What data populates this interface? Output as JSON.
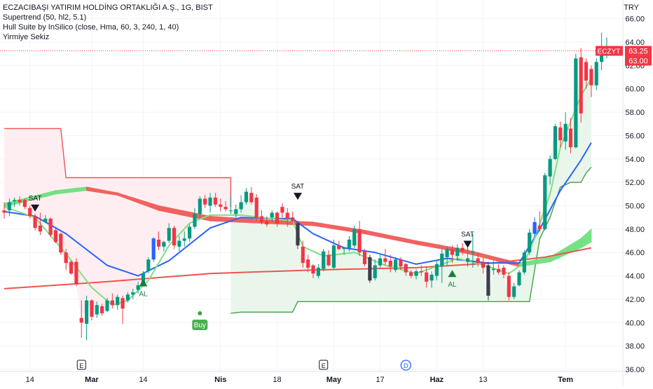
{
  "header": {
    "symbol_title": "ECZACIBAŞI YATIRIM HOLDİNG ORTAKLIĞI A.Ş., 1G, BIST",
    "indicators": [
      "Supertrend (50, hl2, 5.1)",
      "Hull Suite by InSilico (close, Hma, 60, 3, 240, 1, 40)",
      "Yirmiye Sekiz"
    ]
  },
  "colors": {
    "up": "#089981",
    "down": "#f23645",
    "blue_candle": "#2962ff",
    "dark_candle": "#3a3f4b",
    "supertrend_up": "#43a047",
    "supertrend_down": "#ef5350",
    "fill_up": "#e8f5e9",
    "fill_down": "#ffebee",
    "hull_green": "#66e07a",
    "hull_red": "#ef5350",
    "ma_blue": "#2962ff",
    "ma_light_green": "#7ee081",
    "grid": "#f0f3fa",
    "axis_text": "#131722",
    "last_price_bg": "#f23645"
  },
  "chart_data": {
    "type": "candlestick",
    "currency": "TRY",
    "ylim": [
      36,
      67
    ],
    "y_ticks": [
      "36.00",
      "38.00",
      "40.00",
      "42.00",
      "44.00",
      "46.00",
      "48.00",
      "50.00",
      "52.00",
      "54.00",
      "56.00",
      "58.00",
      "60.00",
      "62.00",
      "64.00",
      "66.00"
    ],
    "x_ticks": [
      {
        "label": "14",
        "bar": 5
      },
      {
        "label": "Mar",
        "bar": 17
      },
      {
        "label": "14",
        "bar": 27
      },
      {
        "label": "Nis",
        "bar": 42
      },
      {
        "label": "18",
        "bar": 53
      },
      {
        "label": "May",
        "bar": 64
      },
      {
        "label": "17",
        "bar": 73
      },
      {
        "label": "Haz",
        "bar": 84
      },
      {
        "label": "13",
        "bar": 93
      },
      {
        "label": "Tem",
        "bar": 109
      }
    ],
    "candles": [
      {
        "o": 49.6,
        "h": 50.3,
        "l": 48.9,
        "c": 49.4
      },
      {
        "o": 49.6,
        "h": 50.6,
        "l": 49.1,
        "c": 50.3
      },
      {
        "o": 50.4,
        "h": 50.7,
        "l": 49.9,
        "c": 50.5
      },
      {
        "o": 50.5,
        "h": 50.8,
        "l": 50.0,
        "c": 50.3
      },
      {
        "o": 50.5,
        "h": 50.6,
        "l": 49.7,
        "c": 49.9
      },
      {
        "o": 49.8,
        "h": 50.0,
        "l": 48.9,
        "c": 49.1
      },
      {
        "o": 49.1,
        "h": 49.3,
        "l": 47.9,
        "c": 48.1
      },
      {
        "o": 48.3,
        "h": 49.4,
        "l": 47.5,
        "c": 47.8
      },
      {
        "o": 48.6,
        "h": 49.2,
        "l": 48.5,
        "c": 48.9
      },
      {
        "o": 48.9,
        "h": 49.0,
        "l": 47.3,
        "c": 47.5
      },
      {
        "o": 47.9,
        "h": 48.1,
        "l": 46.8,
        "c": 46.9
      },
      {
        "o": 47.6,
        "h": 47.7,
        "l": 45.8,
        "c": 46.0
      },
      {
        "o": 46.0,
        "h": 46.3,
        "l": 44.5,
        "c": 45.1
      },
      {
        "o": 45.2,
        "h": 45.3,
        "l": 44.1,
        "c": 44.2
      },
      {
        "o": 45.2,
        "h": 45.5,
        "l": 43.1,
        "c": 43.3
      },
      {
        "o": 40.4,
        "h": 41.9,
        "l": 38.7,
        "c": 40.0
      },
      {
        "o": 39.9,
        "h": 42.3,
        "l": 38.5,
        "c": 41.9
      },
      {
        "o": 41.9,
        "h": 42.0,
        "l": 40.2,
        "c": 40.5
      },
      {
        "o": 40.7,
        "h": 41.8,
        "l": 40.4,
        "c": 41.5
      },
      {
        "o": 41.4,
        "h": 41.6,
        "l": 40.6,
        "c": 40.8
      },
      {
        "o": 41.0,
        "h": 42.1,
        "l": 40.9,
        "c": 41.9
      },
      {
        "o": 41.9,
        "h": 42.5,
        "l": 41.2,
        "c": 41.5
      },
      {
        "o": 41.5,
        "h": 42.4,
        "l": 41.1,
        "c": 42.2
      },
      {
        "o": 42.1,
        "h": 42.3,
        "l": 39.9,
        "c": 41.2
      },
      {
        "o": 41.9,
        "h": 42.6,
        "l": 41.7,
        "c": 42.4
      },
      {
        "o": 42.4,
        "h": 42.9,
        "l": 42.0,
        "c": 42.6
      },
      {
        "o": 42.8,
        "h": 43.5,
        "l": 42.5,
        "c": 43.2
      },
      {
        "o": 43.2,
        "h": 44.4,
        "l": 43.1,
        "c": 44.2
      },
      {
        "o": 44.4,
        "h": 45.6,
        "l": 44.2,
        "c": 45.4
      },
      {
        "o": 45.4,
        "h": 47.3,
        "l": 45.2,
        "c": 47.2
      },
      {
        "o": 47.1,
        "h": 47.8,
        "l": 46.2,
        "c": 46.5
      },
      {
        "o": 46.5,
        "h": 47.0,
        "l": 46.1,
        "c": 46.9
      },
      {
        "o": 47.0,
        "h": 48.5,
        "l": 46.8,
        "c": 48.1
      },
      {
        "o": 48.1,
        "h": 48.3,
        "l": 46.3,
        "c": 46.6
      },
      {
        "o": 46.5,
        "h": 47.4,
        "l": 46.1,
        "c": 47.0
      },
      {
        "o": 47.0,
        "h": 47.8,
        "l": 46.5,
        "c": 47.2
      },
      {
        "o": 47.2,
        "h": 48.4,
        "l": 46.9,
        "c": 48.2
      },
      {
        "o": 48.2,
        "h": 49.8,
        "l": 48.0,
        "c": 49.3
      },
      {
        "o": 49.3,
        "h": 50.8,
        "l": 49.0,
        "c": 50.6
      },
      {
        "o": 50.6,
        "h": 50.9,
        "l": 49.8,
        "c": 50.1
      },
      {
        "o": 50.0,
        "h": 51.1,
        "l": 49.4,
        "c": 50.7
      },
      {
        "o": 50.7,
        "h": 51.1,
        "l": 49.9,
        "c": 50.1
      },
      {
        "o": 50.1,
        "h": 50.6,
        "l": 49.5,
        "c": 49.9
      },
      {
        "o": 49.9,
        "h": 50.4,
        "l": 49.5,
        "c": 49.7
      },
      {
        "o": 49.6,
        "h": 50.9,
        "l": 49.3,
        "c": 49.6
      },
      {
        "o": 49.3,
        "h": 50.1,
        "l": 49.0,
        "c": 49.7
      },
      {
        "o": 49.7,
        "h": 50.9,
        "l": 49.4,
        "c": 50.3
      },
      {
        "o": 50.3,
        "h": 51.5,
        "l": 50.1,
        "c": 51.2
      },
      {
        "o": 51.1,
        "h": 51.6,
        "l": 50.1,
        "c": 50.3
      },
      {
        "o": 50.7,
        "h": 51.0,
        "l": 48.7,
        "c": 49.0
      },
      {
        "o": 49.1,
        "h": 49.6,
        "l": 48.4,
        "c": 48.6
      },
      {
        "o": 48.7,
        "h": 49.1,
        "l": 48.2,
        "c": 48.4
      },
      {
        "o": 49.0,
        "h": 49.6,
        "l": 48.6,
        "c": 49.4
      },
      {
        "o": 49.4,
        "h": 49.5,
        "l": 48.2,
        "c": 48.5
      },
      {
        "o": 49.9,
        "h": 50.2,
        "l": 49.0,
        "c": 49.4
      },
      {
        "o": 49.4,
        "h": 49.8,
        "l": 48.2,
        "c": 48.9
      },
      {
        "o": 49.0,
        "h": 49.5,
        "l": 48.5,
        "c": 48.7
      },
      {
        "o": 48.5,
        "h": 48.6,
        "l": 46.3,
        "c": 46.6
      },
      {
        "o": 46.5,
        "h": 47.0,
        "l": 44.7,
        "c": 45.1
      },
      {
        "o": 45.4,
        "h": 45.8,
        "l": 44.3,
        "c": 44.7
      },
      {
        "o": 44.9,
        "h": 45.0,
        "l": 43.8,
        "c": 44.2
      },
      {
        "o": 44.0,
        "h": 45.0,
        "l": 43.8,
        "c": 44.7
      },
      {
        "o": 44.6,
        "h": 46.3,
        "l": 44.4,
        "c": 46.1
      },
      {
        "o": 45.8,
        "h": 46.2,
        "l": 44.8,
        "c": 44.9
      },
      {
        "o": 44.7,
        "h": 47.1,
        "l": 44.5,
        "c": 46.6
      },
      {
        "o": 46.6,
        "h": 47.0,
        "l": 46.2,
        "c": 46.3
      },
      {
        "o": 46.3,
        "h": 46.5,
        "l": 45.8,
        "c": 46.4
      },
      {
        "o": 46.4,
        "h": 47.4,
        "l": 46.1,
        "c": 47.1
      },
      {
        "o": 46.6,
        "h": 48.3,
        "l": 46.4,
        "c": 48.0
      },
      {
        "o": 48.0,
        "h": 48.7,
        "l": 45.7,
        "c": 46.0
      },
      {
        "o": 46.1,
        "h": 46.3,
        "l": 44.8,
        "c": 45.0
      },
      {
        "o": 45.6,
        "h": 45.8,
        "l": 43.4,
        "c": 43.6
      },
      {
        "o": 43.8,
        "h": 45.4,
        "l": 43.6,
        "c": 44.9
      },
      {
        "o": 44.9,
        "h": 45.8,
        "l": 44.7,
        "c": 45.5
      },
      {
        "o": 45.5,
        "h": 46.3,
        "l": 44.9,
        "c": 45.2
      },
      {
        "o": 45.3,
        "h": 45.8,
        "l": 44.3,
        "c": 44.8
      },
      {
        "o": 44.5,
        "h": 45.6,
        "l": 44.3,
        "c": 45.4
      },
      {
        "o": 45.4,
        "h": 45.6,
        "l": 44.5,
        "c": 44.8
      },
      {
        "o": 45.0,
        "h": 45.1,
        "l": 44.0,
        "c": 44.3
      },
      {
        "o": 44.3,
        "h": 44.5,
        "l": 43.8,
        "c": 44.0
      },
      {
        "o": 44.0,
        "h": 44.6,
        "l": 43.7,
        "c": 44.4
      },
      {
        "o": 44.4,
        "h": 44.9,
        "l": 44.0,
        "c": 44.3
      },
      {
        "o": 44.3,
        "h": 44.8,
        "l": 43.0,
        "c": 43.5
      },
      {
        "o": 43.6,
        "h": 44.4,
        "l": 43.0,
        "c": 44.1
      },
      {
        "o": 44.0,
        "h": 45.3,
        "l": 43.6,
        "c": 45.0
      },
      {
        "o": 44.8,
        "h": 46.3,
        "l": 43.4,
        "c": 45.9
      },
      {
        "o": 45.6,
        "h": 46.5,
        "l": 44.9,
        "c": 46.3
      },
      {
        "o": 46.3,
        "h": 46.6,
        "l": 45.1,
        "c": 45.8
      },
      {
        "o": 45.7,
        "h": 46.7,
        "l": 45.3,
        "c": 46.4
      },
      {
        "o": 46.4,
        "h": 46.8,
        "l": 45.8,
        "c": 46.1
      },
      {
        "o": 45.2,
        "h": 46.8,
        "l": 44.8,
        "c": 45.5
      },
      {
        "o": 46.0,
        "h": 47.6,
        "l": 44.7,
        "c": 46.1
      },
      {
        "o": 45.5,
        "h": 46.0,
        "l": 44.8,
        "c": 45.1
      },
      {
        "o": 45.2,
        "h": 45.6,
        "l": 44.2,
        "c": 44.7
      },
      {
        "o": 44.9,
        "h": 45.2,
        "l": 41.9,
        "c": 42.3
      },
      {
        "o": 44.5,
        "h": 45.3,
        "l": 44.1,
        "c": 44.6
      },
      {
        "o": 44.6,
        "h": 45.0,
        "l": 44.1,
        "c": 44.3
      },
      {
        "o": 44.7,
        "h": 44.9,
        "l": 43.8,
        "c": 44.1
      },
      {
        "o": 44.0,
        "h": 44.3,
        "l": 41.9,
        "c": 42.2
      },
      {
        "o": 42.2,
        "h": 43.4,
        "l": 42.0,
        "c": 43.1
      },
      {
        "o": 43.2,
        "h": 44.5,
        "l": 43.1,
        "c": 44.3
      },
      {
        "o": 44.3,
        "h": 46.2,
        "l": 44.1,
        "c": 46.0
      },
      {
        "o": 46.0,
        "h": 48.0,
        "l": 45.8,
        "c": 47.7
      },
      {
        "o": 47.6,
        "h": 49.0,
        "l": 47.3,
        "c": 48.6
      },
      {
        "o": 48.3,
        "h": 49.5,
        "l": 47.8,
        "c": 48.0
      },
      {
        "o": 48.0,
        "h": 52.8,
        "l": 47.9,
        "c": 52.6
      },
      {
        "o": 52.5,
        "h": 54.3,
        "l": 51.8,
        "c": 54.0
      },
      {
        "o": 54.0,
        "h": 57.0,
        "l": 53.9,
        "c": 56.8
      },
      {
        "o": 56.7,
        "h": 57.2,
        "l": 55.0,
        "c": 55.6
      },
      {
        "o": 55.5,
        "h": 58.0,
        "l": 54.8,
        "c": 57.0
      },
      {
        "o": 56.6,
        "h": 57.5,
        "l": 54.5,
        "c": 55.0
      },
      {
        "o": 55.0,
        "h": 63.0,
        "l": 54.9,
        "c": 62.6
      },
      {
        "o": 62.7,
        "h": 63.5,
        "l": 57.1,
        "c": 57.9
      },
      {
        "o": 62.3,
        "h": 62.6,
        "l": 60.0,
        "c": 60.7
      },
      {
        "o": 61.7,
        "h": 62.0,
        "l": 59.3,
        "c": 60.3
      },
      {
        "o": 60.3,
        "h": 62.6,
        "l": 59.9,
        "c": 62.3
      },
      {
        "o": 62.3,
        "h": 64.8,
        "l": 61.6,
        "c": 63.2
      },
      {
        "o": 63.3,
        "h": 64.4,
        "l": 62.6,
        "c": 63.3
      }
    ],
    "supertrend_down": [
      [
        0,
        56.6
      ],
      [
        11,
        56.6
      ],
      [
        12,
        52.4
      ],
      [
        44,
        52.4
      ],
      [
        44,
        49.9
      ]
    ],
    "supertrend_up": [
      [
        44,
        40.8
      ],
      [
        46,
        40.9
      ],
      [
        56,
        40.9
      ],
      [
        57,
        41.8
      ],
      [
        58,
        41.8
      ],
      [
        64,
        41.8
      ],
      [
        102,
        41.8
      ],
      [
        104,
        47.2
      ],
      [
        106,
        49.0
      ],
      [
        108,
        51.6
      ],
      [
        110,
        52.0
      ],
      [
        112,
        52.0
      ],
      [
        113,
        52.8
      ],
      [
        114,
        53.3
      ]
    ],
    "hull_band_a": [
      [
        0,
        50.2
      ],
      [
        10,
        51.3
      ],
      [
        16,
        51.6
      ],
      [
        22,
        51.1
      ],
      [
        30,
        50.0
      ],
      [
        40,
        49.1
      ],
      [
        50,
        48.8
      ],
      [
        60,
        48.6
      ],
      [
        70,
        47.9
      ],
      [
        80,
        47.0
      ],
      [
        90,
        46.2
      ],
      [
        100,
        45.1
      ],
      [
        106,
        45.6
      ],
      [
        112,
        47.2
      ],
      [
        114,
        48.0
      ]
    ],
    "hull_band_b": [
      [
        0,
        49.9
      ],
      [
        10,
        51.0
      ],
      [
        16,
        51.3
      ],
      [
        22,
        50.9
      ],
      [
        30,
        49.6
      ],
      [
        40,
        48.7
      ],
      [
        50,
        48.5
      ],
      [
        60,
        48.3
      ],
      [
        70,
        47.6
      ],
      [
        80,
        46.7
      ],
      [
        90,
        45.9
      ],
      [
        100,
        44.8
      ],
      [
        106,
        45.2
      ],
      [
        112,
        46.4
      ],
      [
        114,
        46.9
      ]
    ],
    "ma_long": [
      [
        0,
        42.9
      ],
      [
        20,
        43.5
      ],
      [
        40,
        44.2
      ],
      [
        60,
        44.5
      ],
      [
        80,
        44.7
      ],
      [
        95,
        45.1
      ],
      [
        105,
        45.6
      ],
      [
        114,
        46.4
      ]
    ],
    "ma_blue": [
      [
        0,
        49.5
      ],
      [
        6,
        49.1
      ],
      [
        12,
        47.6
      ],
      [
        20,
        44.9
      ],
      [
        26,
        44.0
      ],
      [
        32,
        45.3
      ],
      [
        40,
        48.1
      ],
      [
        46,
        49.0
      ],
      [
        52,
        48.9
      ],
      [
        56,
        48.9
      ],
      [
        60,
        47.6
      ],
      [
        66,
        46.4
      ],
      [
        72,
        46.0
      ],
      [
        80,
        45.0
      ],
      [
        86,
        45.5
      ],
      [
        94,
        45.1
      ],
      [
        100,
        45.1
      ],
      [
        104,
        48.0
      ],
      [
        108,
        51.3
      ],
      [
        112,
        53.9
      ],
      [
        114,
        55.4
      ]
    ],
    "ma_light": [
      [
        0,
        49.9
      ],
      [
        6,
        49.0
      ],
      [
        12,
        45.9
      ],
      [
        17,
        43.0
      ],
      [
        21,
        41.5
      ],
      [
        24,
        41.9
      ],
      [
        28,
        43.6
      ],
      [
        32,
        46.6
      ],
      [
        36,
        48.5
      ],
      [
        40,
        49.2
      ],
      [
        46,
        49.2
      ],
      [
        52,
        48.9
      ],
      [
        56,
        48.7
      ],
      [
        58,
        46.5
      ],
      [
        62,
        45.7
      ],
      [
        68,
        46.0
      ],
      [
        74,
        44.9
      ],
      [
        80,
        44.2
      ],
      [
        84,
        44.8
      ],
      [
        88,
        45.5
      ],
      [
        94,
        44.8
      ],
      [
        98,
        44.2
      ],
      [
        101,
        45.1
      ],
      [
        103,
        47.2
      ],
      [
        106,
        51.0
      ],
      [
        108,
        55.0
      ],
      [
        110,
        57.2
      ],
      [
        112,
        59.4
      ],
      [
        114,
        60.9
      ]
    ],
    "signals": [
      {
        "type": "SAT",
        "bar": 6,
        "price": 50.1
      },
      {
        "type": "AL",
        "bar": 27,
        "price": 43.1
      },
      {
        "type": "SAT",
        "bar": 57,
        "price": 51.1
      },
      {
        "type": "AL",
        "bar": 87,
        "price": 43.9
      },
      {
        "type": "SAT",
        "bar": 90,
        "price": 47.0
      }
    ],
    "buy_marker": {
      "label": "Buy",
      "bar": 38,
      "price": 40.8
    },
    "events": [
      {
        "label": "E",
        "bar": 15
      },
      {
        "label": "E",
        "bar": 62
      },
      {
        "label": "D",
        "bar": 78
      }
    ],
    "last_price_labels": {
      "symbol": "ECZYT",
      "close": "63.25",
      "second": "63.00"
    },
    "last_price": 63.25
  }
}
